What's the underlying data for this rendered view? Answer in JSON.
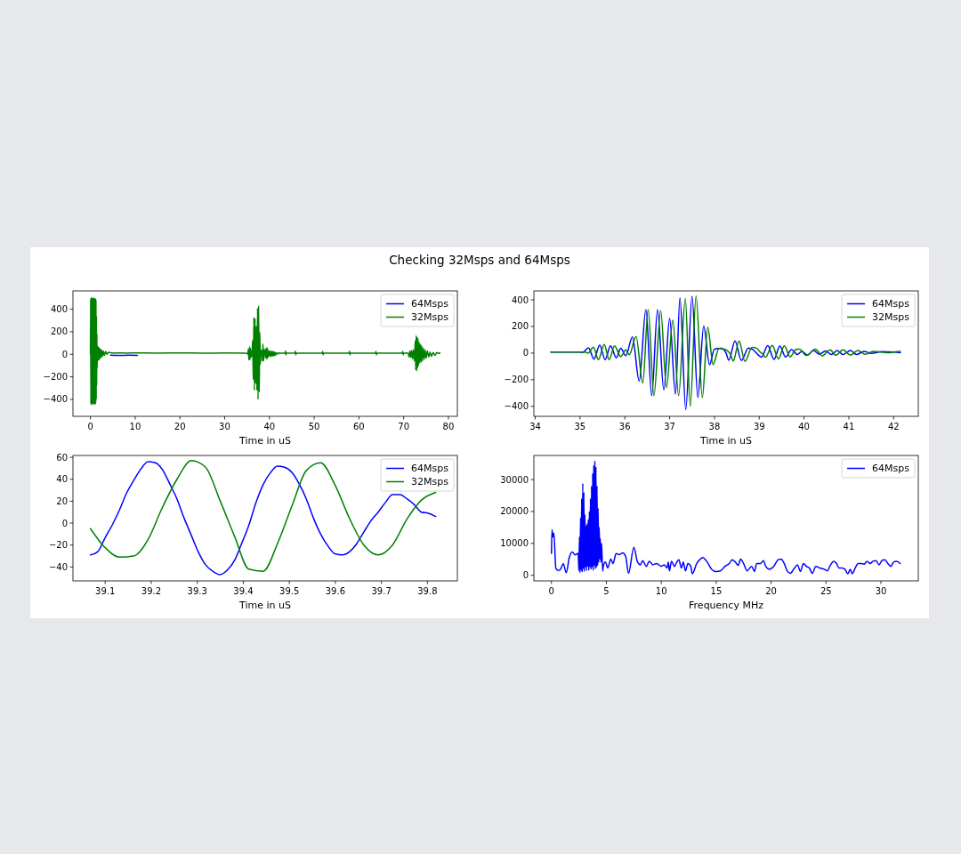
{
  "chart_data": [
    {
      "type": "other",
      "title": "Checking 32Msps and 64Msps"
    },
    {
      "type": "line",
      "xlabel": "Time in uS",
      "xlim": [
        -3.9,
        82
      ],
      "ylim": [
        -550,
        562
      ],
      "xticks": [
        0,
        10,
        20,
        30,
        40,
        50,
        60,
        70,
        80
      ],
      "yticks": [
        {
          "value": -400,
          "label": "−400"
        },
        {
          "value": -200,
          "label": "−200"
        },
        0,
        200,
        400
      ],
      "legend": "top right",
      "series": [
        {
          "name": "64Msps",
          "color": "#0000ff",
          "x": [
            4.5,
            6.5,
            8.5,
            10.5
          ],
          "values": [
            -8,
            -10,
            -8,
            -10
          ]
        },
        {
          "name": "32Msps",
          "color": "#008000",
          "x": [
            0,
            0.05,
            0.1,
            0.15,
            0.2,
            0.25,
            0.3,
            0.35,
            0.4,
            0.45,
            0.5,
            0.55,
            0.6,
            0.65,
            0.7,
            0.75,
            0.8,
            0.85,
            0.9,
            0.95,
            1,
            1.05,
            1.1,
            1.15,
            1.2,
            1.25,
            1.3,
            1.35,
            1.4,
            1.45,
            1.5,
            1.6,
            1.7,
            1.8,
            1.9,
            2,
            2.1,
            2.2,
            2.35,
            2.5,
            2.7,
            2.9,
            3.1,
            3.4,
            3.7,
            4,
            4.5,
            5,
            5.5,
            6.5,
            8,
            10,
            15,
            20,
            25,
            30,
            34.35,
            35.1,
            35.18,
            35.3,
            35.41,
            35.54,
            35.65,
            35.77,
            35.91,
            36.02,
            36.1,
            36.25,
            36.4,
            36.52,
            36.65,
            36.8,
            36.93,
            37.07,
            37.2,
            37.35,
            37.46,
            37.59,
            37.73,
            37.85,
            37.97,
            38.1,
            38.22,
            38.36,
            38.42,
            38.55,
            38.68,
            38.84,
            38.95,
            39,
            39.07,
            39.14,
            39.29,
            39.43,
            39.56,
            39.69,
            39.82,
            39.9,
            40.05,
            40.25,
            40.41,
            40.58,
            40.71,
            40.87,
            41.04,
            41.2,
            41.37,
            41.54,
            41.87,
            42.13,
            42.15,
            43.5,
            43.6,
            43.7,
            43.8,
            45.7,
            45.8,
            45.9,
            46,
            51.8,
            51.9,
            52,
            52.1,
            57.8,
            57.9,
            58,
            58.1,
            63.7,
            63.8,
            63.9,
            64,
            69.7,
            69.8,
            69.9,
            70,
            71,
            71.2,
            71.4,
            71.6,
            71.8,
            72,
            72.2,
            72.4,
            72.6,
            72.7,
            72.8,
            72.9,
            73,
            73.1,
            73.2,
            73.3,
            73.45,
            73.6,
            73.75,
            73.9,
            74.05,
            74.2,
            74.4,
            74.6,
            74.8,
            75,
            75.3,
            75.6,
            75.9,
            76.2,
            76.6,
            77,
            77.4,
            77.8,
            78.1
          ],
          "values": [
            0,
            490,
            -440,
            505,
            -450,
            500,
            -440,
            495,
            -445,
            500,
            -430,
            490,
            -440,
            505,
            -440,
            495,
            -445,
            490,
            -430,
            500,
            -440,
            490,
            -445,
            495,
            -430,
            480,
            -400,
            340,
            -280,
            180,
            -120,
            70,
            -55,
            65,
            -50,
            55,
            -40,
            45,
            -30,
            40,
            -20,
            30,
            -10,
            25,
            0,
            18,
            14,
            12,
            10,
            12,
            10,
            12,
            10,
            12,
            10,
            11,
            10,
            8,
            0,
            45,
            -50,
            65,
            -50,
            54,
            -27,
            25,
            -13,
            125,
            -225,
            326,
            -320,
            318,
            -260,
            248,
            -320,
            410,
            -400,
            430,
            -335,
            195,
            -87,
            35,
            30,
            -10,
            -60,
            92,
            -62,
            42,
            35,
            15,
            -5,
            -31,
            57,
            -44,
            55,
            -29,
            28,
            30,
            -18,
            29,
            -20,
            25,
            -16,
            25,
            -16,
            20,
            -9,
            13,
            2,
            13,
            12,
            10,
            30,
            -5,
            10,
            10,
            28,
            -5,
            10,
            10,
            26,
            -5,
            10,
            10,
            28,
            -5,
            10,
            10,
            26,
            -5,
            10,
            10,
            26,
            -5,
            10,
            10,
            -25,
            30,
            -30,
            35,
            -40,
            40,
            -60,
            120,
            -140,
            165,
            -145,
            150,
            -120,
            140,
            -100,
            110,
            -80,
            90,
            -70,
            75,
            -60,
            55,
            -45,
            40,
            -35,
            30,
            -25,
            20,
            -18,
            15,
            -10,
            15,
            8,
            12
          ]
        }
      ]
    },
    {
      "type": "line",
      "xlabel": "Time in uS",
      "xlim": [
        33.97,
        42.55
      ],
      "ylim": [
        -475,
        467
      ],
      "xticks": [
        34,
        35,
        36,
        37,
        38,
        39,
        40,
        41,
        42
      ],
      "yticks": [
        {
          "value": -400,
          "label": "−400"
        },
        {
          "value": -200,
          "label": "−200"
        },
        0,
        200,
        400
      ],
      "legend": "top right",
      "series": [
        {
          "name": "64Msps",
          "color": "#0000ff",
          "x": [
            34.35,
            35,
            35.06,
            35.19,
            35.31,
            35.44,
            35.56,
            35.68,
            35.81,
            35.91,
            36.02,
            36.17,
            36.32,
            36.47,
            36.6,
            36.73,
            36.87,
            37,
            37.13,
            37.23,
            37.36,
            37.5,
            37.63,
            37.76,
            37.89,
            38,
            38.15,
            38.26,
            38.32,
            38.46,
            38.6,
            38.76,
            38.86,
            39.05,
            39.19,
            39.33,
            39.46,
            39.59,
            39.72,
            39.85,
            39.95,
            40.08,
            40.21,
            40.34,
            40.48,
            40.61,
            40.74,
            40.87,
            41.04,
            41.17,
            41.34,
            41.5,
            41.74,
            42,
            42.15
          ],
          "values": [
            8,
            8,
            5,
            40,
            -45,
            60,
            -49,
            54,
            -36,
            36,
            -20,
            121,
            -210,
            326,
            -320,
            326,
            -277,
            262,
            -310,
            415,
            -425,
            427,
            -333,
            203,
            -88,
            30,
            36,
            0,
            -54,
            92,
            -55,
            38,
            25,
            -30,
            56,
            -47,
            52,
            -29,
            26,
            -11,
            13,
            -16,
            20,
            -9,
            16,
            -11,
            20,
            -11,
            20,
            -11,
            13,
            -2,
            11,
            7,
            3
          ]
        },
        {
          "name": "32Msps",
          "color": "#008000",
          "x": [
            34.35,
            35.1,
            35.18,
            35.3,
            35.41,
            35.54,
            35.65,
            35.77,
            35.91,
            36.02,
            36.1,
            36.25,
            36.4,
            36.52,
            36.65,
            36.8,
            36.93,
            37.07,
            37.2,
            37.35,
            37.46,
            37.59,
            37.73,
            37.85,
            37.97,
            38.1,
            38.22,
            38.36,
            38.42,
            38.55,
            38.68,
            38.84,
            38.95,
            39,
            39.07,
            39.14,
            39.29,
            39.43,
            39.56,
            39.69,
            39.82,
            39.9,
            40.05,
            40.25,
            40.41,
            40.58,
            40.71,
            40.87,
            41.04,
            41.2,
            41.37,
            41.54,
            41.87,
            42.13,
            42.15
          ],
          "values": [
            8,
            8,
            0,
            45,
            -50,
            65,
            -50,
            54,
            -27,
            25,
            -13,
            125,
            -225,
            326,
            -320,
            318,
            -260,
            248,
            -320,
            410,
            -400,
            430,
            -335,
            195,
            -87,
            35,
            30,
            -10,
            -60,
            92,
            -62,
            42,
            35,
            15,
            -5,
            -31,
            57,
            -44,
            55,
            -29,
            28,
            30,
            -18,
            29,
            -20,
            25,
            -16,
            25,
            -16,
            20,
            -9,
            13,
            2,
            13,
            12
          ]
        }
      ]
    },
    {
      "type": "line",
      "xlabel": "Time in uS",
      "xlim": [
        39.03,
        39.865
      ],
      "ylim": [
        -52.7,
        61.7
      ],
      "xticks": [
        39.1,
        39.2,
        39.3,
        39.4,
        39.5,
        39.6,
        39.7,
        39.8
      ],
      "yticks": [
        {
          "value": -40,
          "label": "−40"
        },
        {
          "value": -20,
          "label": "−20"
        },
        0,
        20,
        40,
        60
      ],
      "legend": "top right",
      "series": [
        {
          "name": "64Msps",
          "color": "#0000ff",
          "x": [
            39.068,
            39.084,
            39.099,
            39.115,
            39.131,
            39.146,
            39.162,
            39.177,
            39.193,
            39.209,
            39.224,
            39.24,
            39.256,
            39.271,
            39.287,
            39.302,
            39.318,
            39.334,
            39.349,
            39.365,
            39.381,
            39.396,
            39.412,
            39.427,
            39.443,
            39.459,
            39.474,
            39.49,
            39.506,
            39.521,
            39.537,
            39.552,
            39.568,
            39.584,
            39.599,
            39.615,
            39.631,
            39.646,
            39.662,
            39.677,
            39.693,
            39.709,
            39.724,
            39.74,
            39.756,
            39.771,
            39.787,
            39.802,
            39.818
          ],
          "values": [
            -29,
            -26,
            -14,
            -2,
            12,
            27,
            39,
            49,
            56,
            55,
            49,
            36,
            22,
            5,
            -11,
            -26,
            -38,
            -44,
            -47,
            -43,
            -34,
            -19,
            -2,
            18,
            35,
            46,
            52,
            51,
            46,
            36,
            22,
            5,
            -10,
            -21,
            -28,
            -29,
            -26,
            -19,
            -8,
            2,
            10,
            19,
            26,
            26,
            22,
            17,
            10,
            9,
            6
          ]
        },
        {
          "name": "32Msps",
          "color": "#008000",
          "x": [
            39.068,
            39.099,
            39.131,
            39.162,
            39.193,
            39.224,
            39.256,
            39.287,
            39.318,
            39.349,
            39.381,
            39.412,
            39.443,
            39.474,
            39.506,
            39.537,
            39.568,
            39.599,
            39.631,
            39.662,
            39.693,
            39.724,
            39.756,
            39.787,
            39.818
          ],
          "values": [
            -5,
            -22,
            -31,
            -30,
            -15,
            14,
            40,
            57,
            51,
            21,
            -12,
            -42,
            -44,
            -19,
            16,
            48,
            55,
            35,
            4,
            -20,
            -29,
            -20,
            4,
            21,
            28
          ]
        }
      ]
    },
    {
      "type": "line",
      "xlabel": "Frequency MHz",
      "xlim": [
        -1.6,
        33.4
      ],
      "ylim": [
        -1750,
        37550
      ],
      "xticks": [
        0,
        5,
        10,
        15,
        20,
        25,
        30
      ],
      "yticks": [
        0,
        10000,
        20000,
        30000
      ],
      "legend": "top right",
      "series": [
        {
          "name": "64Msps",
          "color": "#0000ff",
          "x": [
            0,
            0.05,
            0.13,
            0.22,
            0.4,
            0.6,
            0.81,
            1.08,
            1.35,
            1.62,
            1.89,
            2.16,
            2.43,
            2.5,
            2.55,
            2.6,
            2.65,
            2.7,
            2.75,
            2.8,
            2.85,
            2.9,
            2.95,
            3,
            3.05,
            3.1,
            3.15,
            3.2,
            3.25,
            3.3,
            3.35,
            3.4,
            3.45,
            3.5,
            3.55,
            3.6,
            3.65,
            3.7,
            3.75,
            3.8,
            3.85,
            3.9,
            3.95,
            4,
            4.05,
            4.1,
            4.15,
            4.2,
            4.25,
            4.3,
            4.35,
            4.4,
            4.45,
            4.5,
            4.55,
            4.6,
            4.67,
            4.72,
            4.91,
            5.13,
            5.4,
            5.61,
            5.88,
            6.2,
            6.48,
            6.75,
            7.02,
            7.5,
            7.83,
            8.1,
            8.3,
            8.64,
            8.91,
            9.23,
            9.58,
            10,
            10.26,
            10.53,
            10.64,
            10.74,
            10.93,
            11.2,
            11.42,
            11.6,
            11.83,
            12,
            12.2,
            12.42,
            12.69,
            12.82,
            13.23,
            13.64,
            13.77,
            14.17,
            14.58,
            14.98,
            15.39,
            15.79,
            16.19,
            16.46,
            16.73,
            17,
            17.22,
            17.49,
            17.81,
            18.22,
            18.49,
            18.68,
            19.03,
            19.3,
            19.51,
            19.84,
            20.24,
            20.65,
            20.92,
            21.19,
            21.46,
            21.73,
            22.13,
            22.4,
            22.67,
            22.94,
            23.21,
            23.48,
            23.75,
            24.07,
            24.42,
            24.83,
            25.1,
            25.42,
            25.69,
            25.96,
            26.18,
            26.45,
            26.72,
            26.99,
            27.2,
            27.39,
            27.66,
            27.93,
            28.2,
            28.47,
            28.74,
            29.01,
            29.28,
            29.55,
            29.82,
            30.09,
            30.36,
            30.63,
            30.9,
            31.17,
            31.44,
            31.75
          ],
          "values": [
            6900,
            14300,
            12000,
            13200,
            2200,
            1500,
            1800,
            3600,
            800,
            5500,
            7300,
            6400,
            6900,
            1500,
            12000,
            800,
            18000,
            1500,
            24000,
            1000,
            28800,
            2000,
            26000,
            1200,
            19000,
            2500,
            15500,
            1500,
            16200,
            2800,
            17500,
            1500,
            20000,
            2500,
            24000,
            1800,
            28000,
            2500,
            32000,
            1500,
            34500,
            3000,
            35900,
            2000,
            34000,
            2500,
            28000,
            3000,
            21000,
            4000,
            15000,
            5000,
            11500,
            4000,
            10000,
            7000,
            1300,
            2800,
            4200,
            2300,
            5100,
            3700,
            6800,
            6500,
            7000,
            6000,
            600,
            8800,
            4200,
            3300,
            4600,
            2800,
            4400,
            3300,
            3700,
            2800,
            3300,
            2300,
            4200,
            1400,
            4400,
            2800,
            4200,
            4900,
            2300,
            4200,
            1400,
            3700,
            2800,
            500,
            3700,
            5300,
            5600,
            4200,
            1900,
            1200,
            1400,
            2800,
            3700,
            4900,
            4200,
            3100,
            5100,
            3700,
            1400,
            2800,
            1200,
            3700,
            3700,
            4600,
            2800,
            1900,
            2800,
            4900,
            5100,
            3700,
            1400,
            600,
            2300,
            3300,
            1200,
            3700,
            2800,
            2300,
            600,
            2800,
            2300,
            1900,
            1400,
            3300,
            4400,
            3700,
            2300,
            2300,
            1900,
            500,
            1900,
            500,
            2300,
            3700,
            3700,
            3500,
            4400,
            3700,
            4400,
            4600,
            3300,
            4600,
            4900,
            3700,
            2800,
            4200,
            4400,
            3700
          ]
        }
      ]
    }
  ]
}
